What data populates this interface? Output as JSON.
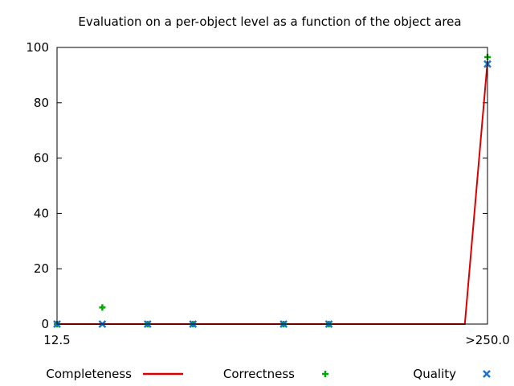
{
  "chart_data": {
    "type": "scatter",
    "title": "Evaluation on a per-object level as a function of the object area",
    "xlabel": "",
    "ylabel": "",
    "x_tick_labels": [
      "12.5",
      ">250.0"
    ],
    "x_range": [
      0,
      9.5
    ],
    "ylim": [
      0,
      100
    ],
    "y_ticks": [
      0,
      20,
      40,
      60,
      80,
      100
    ],
    "grid": false,
    "legend_position": "bottom",
    "series": [
      {
        "name": "Completeness",
        "style": "line",
        "color": "#dd0000",
        "x": [
          0,
          1,
          2,
          3,
          4,
          5,
          6,
          7,
          8,
          9,
          9.5
        ],
        "y": [
          0,
          0,
          0,
          0,
          0,
          0,
          0,
          0,
          0,
          0,
          95
        ]
      },
      {
        "name": "Correctness",
        "style": "plus",
        "color": "#00aa00",
        "x": [
          0,
          1,
          2,
          3,
          5,
          6,
          9.5
        ],
        "y": [
          0,
          6,
          0,
          0,
          0,
          0,
          96.5
        ]
      },
      {
        "name": "Quality",
        "style": "cross",
        "color": "#1874cd",
        "x": [
          0,
          1,
          2,
          3,
          5,
          6,
          9.5
        ],
        "y": [
          0,
          0,
          0,
          0,
          0,
          0,
          94
        ]
      }
    ]
  }
}
